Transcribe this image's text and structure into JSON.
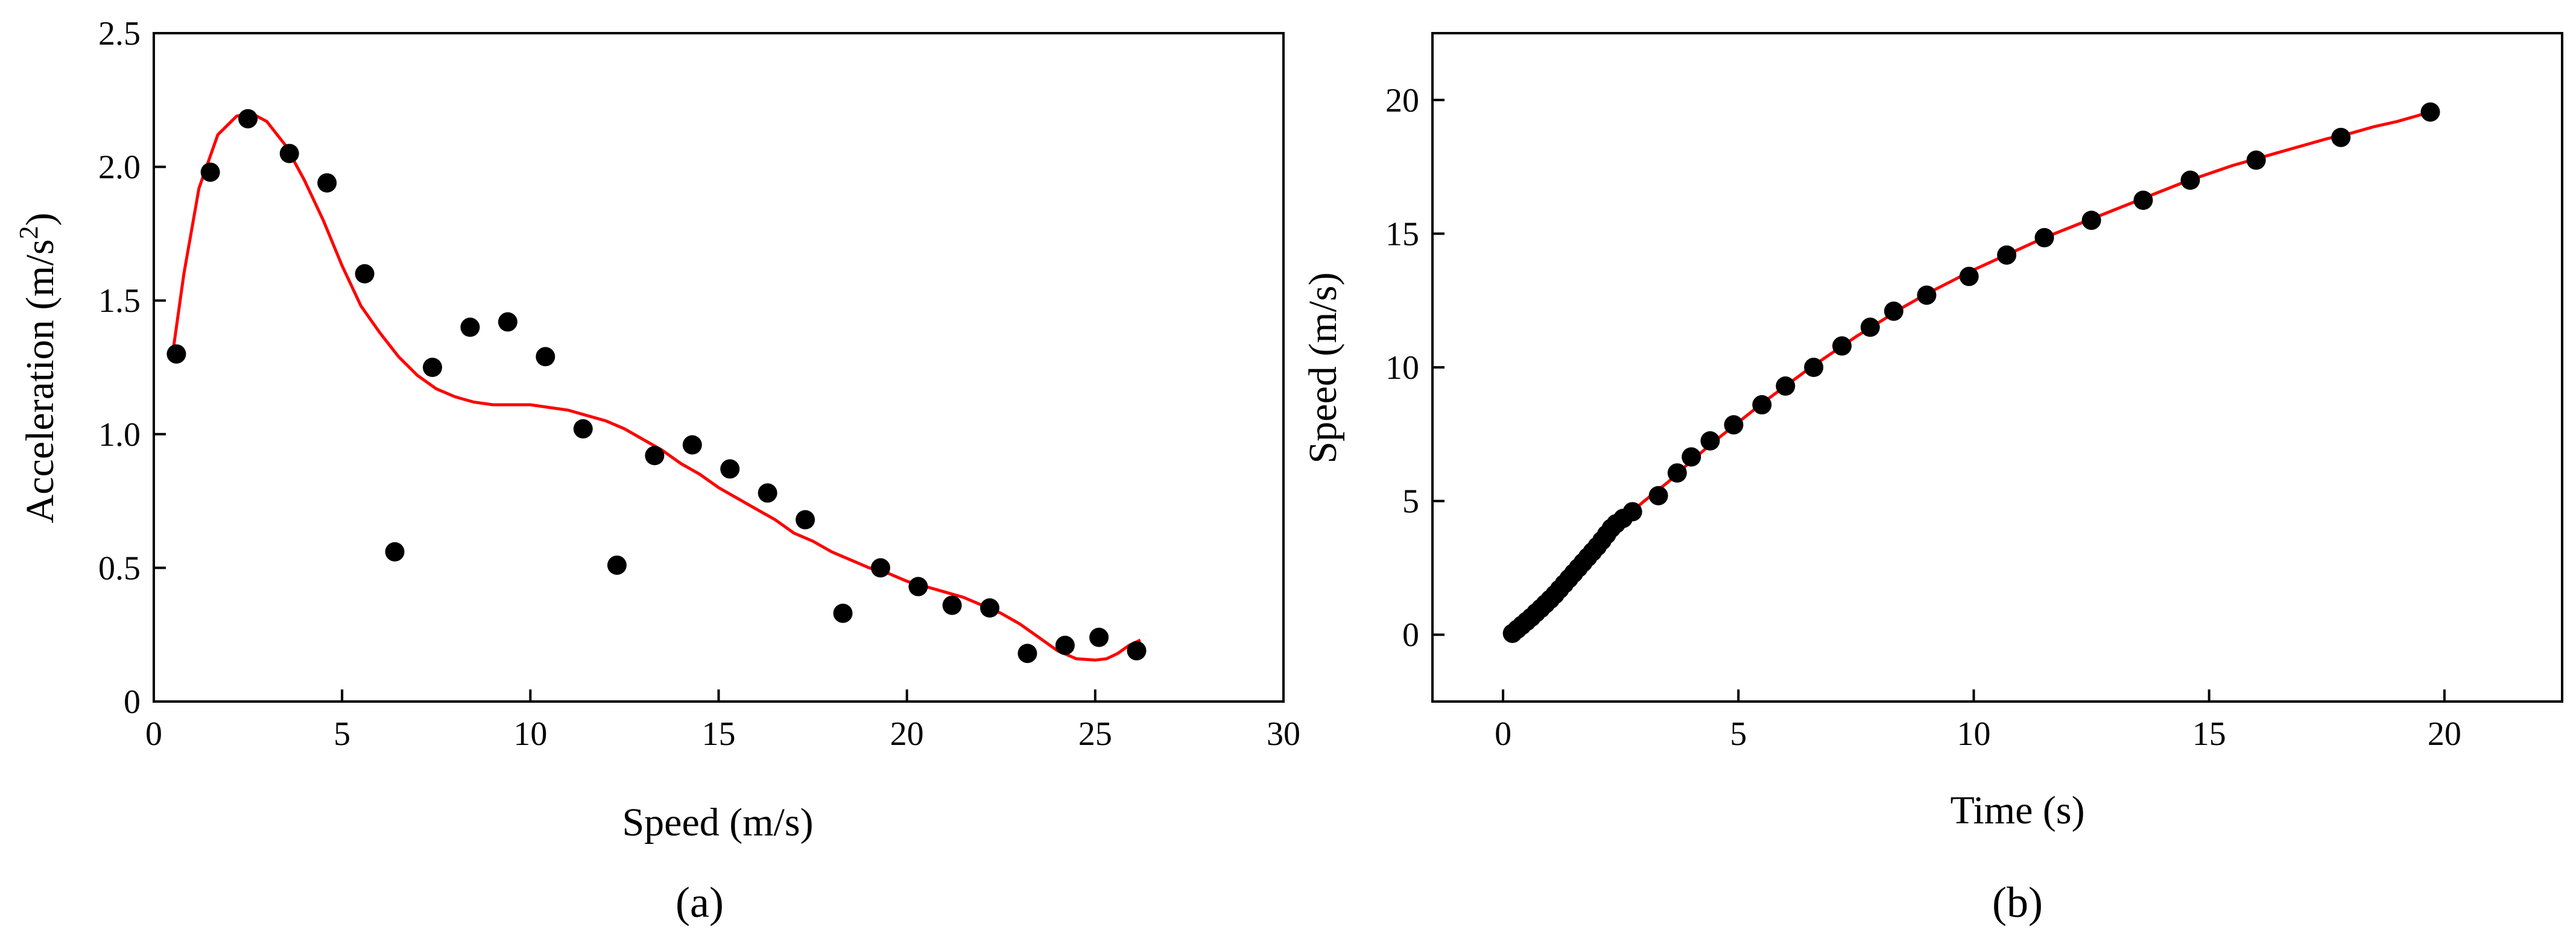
{
  "chart_data": [
    {
      "panel": "(a)",
      "type": "scatter",
      "xlabel": "Speed (m/s)",
      "ylabel": "Acceleration (m/s^2)",
      "ylabel_main": "Acceleration (m/s",
      "ylabel_sup": "2",
      "ylabel_end": ")",
      "xlim": [
        0,
        30
      ],
      "ylim": [
        0,
        2.5
      ],
      "xticks": [
        0,
        5,
        10,
        15,
        20,
        25,
        30
      ],
      "yticks": [
        0,
        0.5,
        1.0,
        1.5,
        2.0,
        2.5
      ],
      "xtick_labels": [
        "0",
        "5",
        "10",
        "15",
        "20",
        "25",
        "30"
      ],
      "ytick_labels": [
        "0",
        "0.5",
        "1.0",
        "1.5",
        "2.0",
        "2.5"
      ],
      "grid": false,
      "points_color": "#000000",
      "fit_color": "#ff0000",
      "points": [
        [
          0.6,
          1.3
        ],
        [
          1.5,
          1.98
        ],
        [
          2.5,
          2.18
        ],
        [
          3.6,
          2.05
        ],
        [
          4.6,
          1.94
        ],
        [
          5.6,
          1.6
        ],
        [
          6.4,
          0.56
        ],
        [
          7.4,
          1.25
        ],
        [
          8.4,
          1.4
        ],
        [
          9.4,
          1.42
        ],
        [
          10.4,
          1.29
        ],
        [
          11.4,
          1.02
        ],
        [
          12.3,
          0.51
        ],
        [
          13.3,
          0.92
        ],
        [
          14.3,
          0.96
        ],
        [
          15.3,
          0.87
        ],
        [
          16.3,
          0.78
        ],
        [
          17.3,
          0.68
        ],
        [
          18.3,
          0.33
        ],
        [
          19.3,
          0.5
        ],
        [
          20.3,
          0.43
        ],
        [
          21.2,
          0.36
        ],
        [
          22.2,
          0.35
        ],
        [
          23.2,
          0.18
        ],
        [
          24.2,
          0.21
        ],
        [
          25.1,
          0.24
        ],
        [
          26.1,
          0.19
        ]
      ],
      "fit": [
        [
          0.5,
          1.3
        ],
        [
          0.8,
          1.6
        ],
        [
          1.2,
          1.92
        ],
        [
          1.7,
          2.12
        ],
        [
          2.2,
          2.19
        ],
        [
          2.6,
          2.2
        ],
        [
          3.0,
          2.17
        ],
        [
          3.5,
          2.08
        ],
        [
          4.0,
          1.95
        ],
        [
          4.5,
          1.8
        ],
        [
          5.0,
          1.63
        ],
        [
          5.5,
          1.48
        ],
        [
          6.0,
          1.38
        ],
        [
          6.5,
          1.29
        ],
        [
          7.0,
          1.22
        ],
        [
          7.5,
          1.17
        ],
        [
          8.0,
          1.14
        ],
        [
          8.5,
          1.12
        ],
        [
          9.0,
          1.11
        ],
        [
          10.0,
          1.11
        ],
        [
          10.5,
          1.1
        ],
        [
          11.0,
          1.09
        ],
        [
          11.5,
          1.07
        ],
        [
          12.0,
          1.05
        ],
        [
          12.5,
          1.02
        ],
        [
          13.0,
          0.98
        ],
        [
          13.5,
          0.94
        ],
        [
          14.0,
          0.89
        ],
        [
          14.5,
          0.85
        ],
        [
          15.0,
          0.8
        ],
        [
          15.5,
          0.76
        ],
        [
          16.0,
          0.72
        ],
        [
          16.5,
          0.68
        ],
        [
          17.0,
          0.63
        ],
        [
          17.5,
          0.6
        ],
        [
          18.0,
          0.56
        ],
        [
          18.5,
          0.53
        ],
        [
          19.0,
          0.5
        ],
        [
          19.5,
          0.48
        ],
        [
          20.0,
          0.45
        ],
        [
          20.5,
          0.43
        ],
        [
          21.0,
          0.41
        ],
        [
          21.5,
          0.39
        ],
        [
          22.0,
          0.36
        ],
        [
          22.5,
          0.33
        ],
        [
          23.0,
          0.29
        ],
        [
          23.5,
          0.24
        ],
        [
          24.0,
          0.19
        ],
        [
          24.5,
          0.16
        ],
        [
          25.0,
          0.155
        ],
        [
          25.3,
          0.16
        ],
        [
          25.6,
          0.18
        ],
        [
          25.9,
          0.21
        ],
        [
          26.2,
          0.23
        ]
      ]
    },
    {
      "panel": "(b)",
      "type": "scatter",
      "xlabel": "Time (s)",
      "ylabel": "Speed (m/s)",
      "xlim": [
        -1.5,
        22.5
      ],
      "ylim": [
        -2.5,
        22.5
      ],
      "xticks": [
        0,
        5,
        10,
        15,
        20
      ],
      "yticks": [
        0,
        5,
        10,
        15,
        20
      ],
      "xtick_labels": [
        "0",
        "5",
        "10",
        "15",
        "20"
      ],
      "ytick_labels": [
        "0",
        "5",
        "10",
        "15",
        "20"
      ],
      "grid": false,
      "points_color": "#000000",
      "fit_color": "#ff0000",
      "points": [
        [
          0.2,
          0.05
        ],
        [
          0.3,
          0.2
        ],
        [
          0.4,
          0.35
        ],
        [
          0.5,
          0.5
        ],
        [
          0.6,
          0.65
        ],
        [
          0.7,
          0.82
        ],
        [
          0.8,
          0.98
        ],
        [
          0.9,
          1.15
        ],
        [
          1.0,
          1.32
        ],
        [
          1.1,
          1.5
        ],
        [
          1.2,
          1.7
        ],
        [
          1.3,
          1.9
        ],
        [
          1.4,
          2.1
        ],
        [
          1.5,
          2.3
        ],
        [
          1.6,
          2.5
        ],
        [
          1.7,
          2.7
        ],
        [
          1.8,
          2.9
        ],
        [
          1.9,
          3.1
        ],
        [
          2.0,
          3.3
        ],
        [
          2.1,
          3.52
        ],
        [
          2.2,
          3.75
        ],
        [
          2.3,
          3.98
        ],
        [
          2.4,
          4.15
        ],
        [
          2.55,
          4.35
        ],
        [
          2.75,
          4.6
        ],
        [
          3.3,
          5.2
        ],
        [
          3.7,
          6.05
        ],
        [
          4.0,
          6.65
        ],
        [
          4.4,
          7.25
        ],
        [
          4.9,
          7.85
        ],
        [
          5.5,
          8.6
        ],
        [
          6.0,
          9.3
        ],
        [
          6.6,
          10.0
        ],
        [
          7.2,
          10.8
        ],
        [
          7.8,
          11.5
        ],
        [
          8.3,
          12.1
        ],
        [
          9.0,
          12.7
        ],
        [
          9.9,
          13.4
        ],
        [
          10.7,
          14.2
        ],
        [
          11.5,
          14.85
        ],
        [
          12.5,
          15.5
        ],
        [
          13.6,
          16.25
        ],
        [
          14.6,
          17.0
        ],
        [
          16.0,
          17.75
        ],
        [
          17.8,
          18.6
        ],
        [
          19.7,
          19.55
        ]
      ],
      "fit": [
        [
          0.2,
          0.0
        ],
        [
          0.5,
          0.4
        ],
        [
          1.0,
          1.3
        ],
        [
          1.5,
          2.25
        ],
        [
          2.0,
          3.25
        ],
        [
          2.5,
          4.25
        ],
        [
          3.0,
          5.0
        ],
        [
          3.5,
          5.7
        ],
        [
          4.0,
          6.5
        ],
        [
          4.5,
          7.25
        ],
        [
          5.0,
          7.95
        ],
        [
          5.5,
          8.65
        ],
        [
          6.0,
          9.3
        ],
        [
          6.5,
          9.95
        ],
        [
          7.0,
          10.55
        ],
        [
          7.5,
          11.15
        ],
        [
          8.0,
          11.7
        ],
        [
          8.5,
          12.25
        ],
        [
          9.0,
          12.75
        ],
        [
          9.5,
          13.2
        ],
        [
          10.0,
          13.65
        ],
        [
          10.5,
          14.05
        ],
        [
          11.0,
          14.45
        ],
        [
          11.5,
          14.85
        ],
        [
          12.0,
          15.2
        ],
        [
          12.5,
          15.55
        ],
        [
          13.0,
          15.9
        ],
        [
          13.5,
          16.25
        ],
        [
          14.0,
          16.6
        ],
        [
          14.5,
          16.95
        ],
        [
          15.0,
          17.25
        ],
        [
          15.5,
          17.55
        ],
        [
          16.0,
          17.8
        ],
        [
          16.5,
          18.05
        ],
        [
          17.0,
          18.3
        ],
        [
          17.5,
          18.55
        ],
        [
          18.0,
          18.75
        ],
        [
          18.5,
          19.0
        ],
        [
          19.0,
          19.2
        ],
        [
          19.5,
          19.45
        ],
        [
          19.8,
          19.58
        ]
      ]
    }
  ]
}
